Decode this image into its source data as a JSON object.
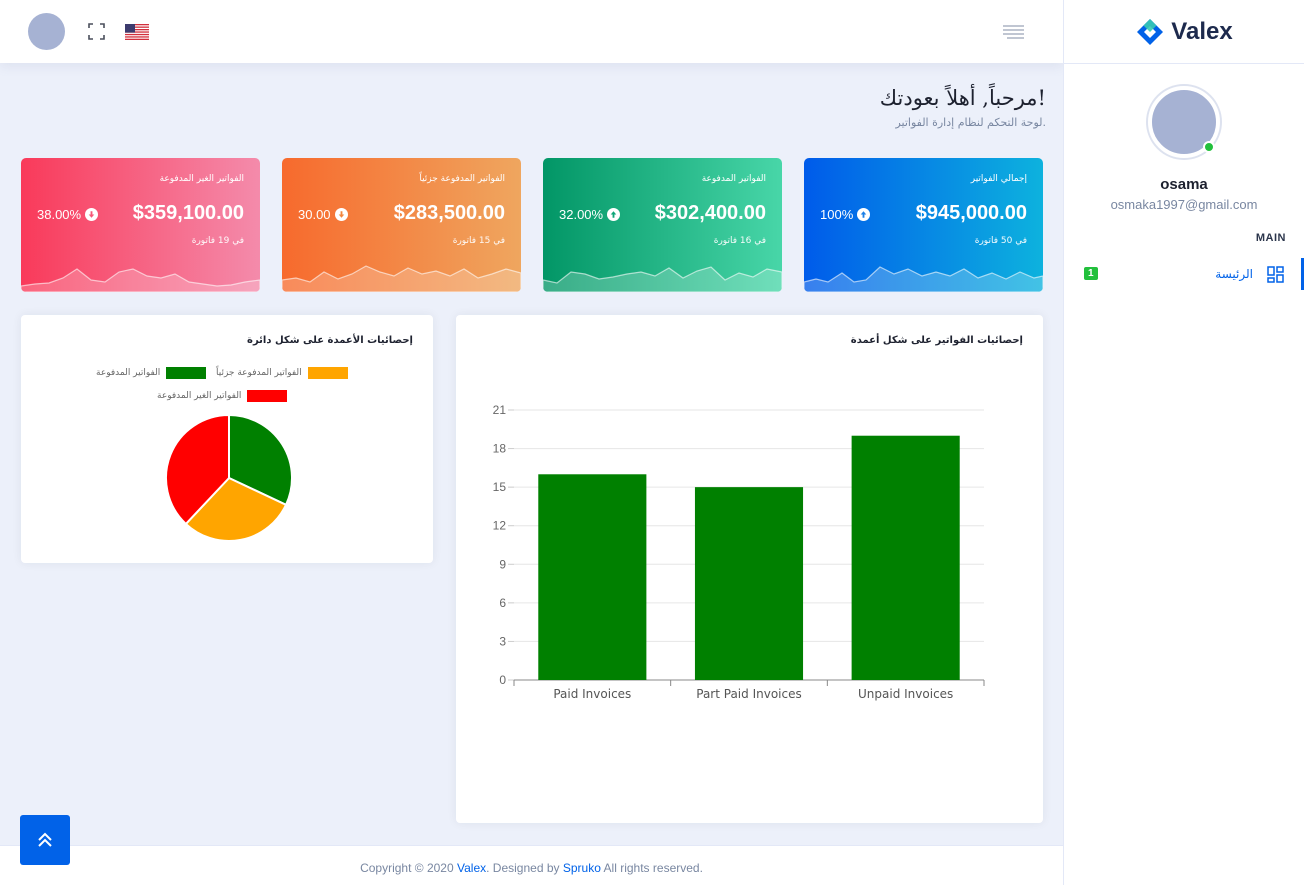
{
  "brand": {
    "name": "Valex"
  },
  "header": {
    "flag": "us-flag-icon"
  },
  "sidebar": {
    "user_name": "osama",
    "user_email": "osmaka1997@gmail.com",
    "category": "MAIN",
    "items": [
      {
        "label": "الرئيسة",
        "badge": "1"
      }
    ]
  },
  "welcome": {
    "title": "مرحباً, أهلاً بعودتك!",
    "subtitle": "لوحة التحكم لنظام إدارة الفواتير."
  },
  "cards": [
    {
      "title": "إجمالي الفواتير",
      "amount": "$945,000.00",
      "percent": "100%",
      "direction": "up",
      "count": "في 50 فاتورة"
    },
    {
      "title": "الفواتير المدفوعة",
      "amount": "$302,400.00",
      "percent": "32.00%",
      "direction": "up",
      "count": "في 16 فاتورة"
    },
    {
      "title": "الفواتير المدفوعة جزئياً",
      "amount": "$283,500.00",
      "percent": "30.00",
      "direction": "down",
      "count": "في 15 فاتورة"
    },
    {
      "title": "الفواتير الغير المدفوعة",
      "amount": "$359,100.00",
      "percent": "38.00%",
      "direction": "down",
      "count": "في 19 فاتورة"
    }
  ],
  "pie_panel": {
    "title": "إحصائيات الأعمدة على شكل دائرة"
  },
  "bar_panel": {
    "title": "إحصائيات الفواتير على شكل أعمدة"
  },
  "chart_data": [
    {
      "type": "pie",
      "title": "",
      "legend": "top",
      "slices": [
        {
          "label": "الفواتير المدفوعة",
          "value": 32,
          "color": "#008000"
        },
        {
          "label": "الفواتير المدفوعة جزئياً",
          "value": 30,
          "color": "#ffa500"
        },
        {
          "label": "الفواتير الغير المدفوعة",
          "value": 38,
          "color": "#ff0000"
        }
      ]
    },
    {
      "type": "bar",
      "title": "",
      "categories": [
        "Paid Invoices",
        "Part Paid Invoices",
        "Unpaid Invoices"
      ],
      "values": [
        16,
        15,
        19
      ],
      "color": "#008000",
      "ylim": [
        0,
        21
      ],
      "yticks": [
        0,
        3,
        6,
        9,
        12,
        15,
        18,
        21
      ],
      "grid": true
    }
  ],
  "footer": {
    "prefix": "Copyright © 2020 ",
    "brand": "Valex",
    "middle": ". Designed by ",
    "designer": "Spruko",
    "suffix": " All rights reserved."
  }
}
